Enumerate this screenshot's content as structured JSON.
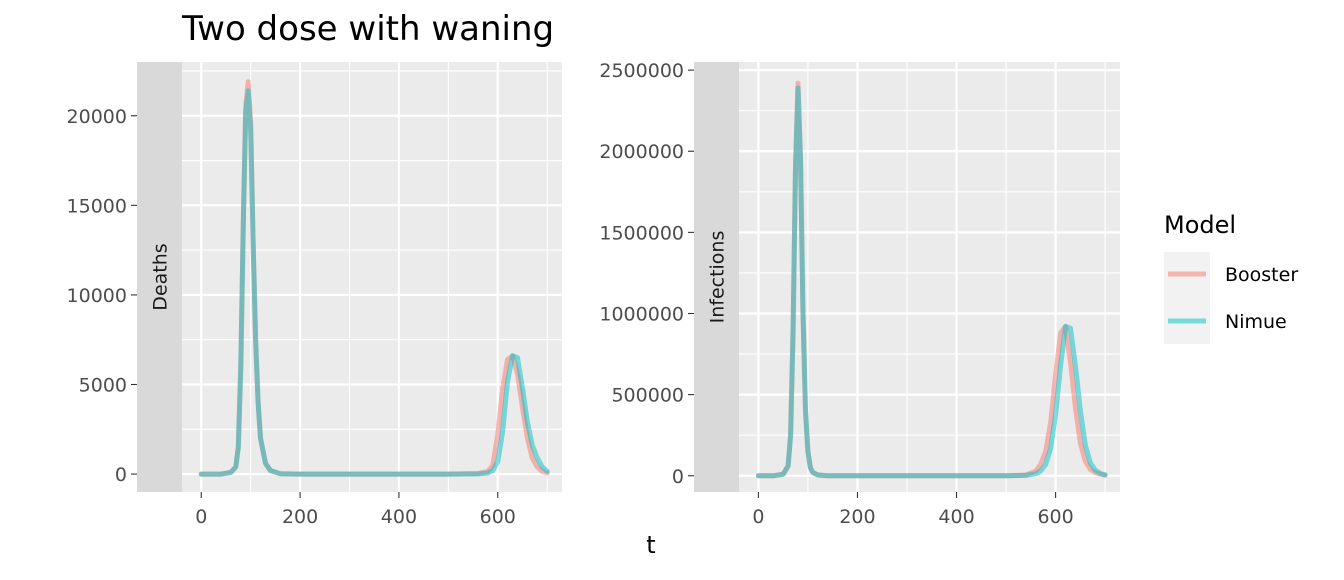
{
  "title": "Two dose with waning",
  "chart_data": {
    "type": "line",
    "xlabel": "t",
    "legend": {
      "title": "Model",
      "position": "right",
      "entries": [
        {
          "name": "Booster",
          "color": "#F8766D",
          "opacity": 0.5
        },
        {
          "name": "Nimue",
          "color": "#00BFC4",
          "opacity": 0.5
        }
      ]
    },
    "panels": [
      {
        "strip_label": "Deaths",
        "xlim": [
          -130,
          730
        ],
        "ylim": [
          -1000,
          23000
        ],
        "x_ticks": [
          0,
          200,
          400,
          600
        ],
        "y_ticks": [
          0,
          5000,
          10000,
          15000,
          20000
        ],
        "y_tick_labels": [
          "0",
          "5000",
          "10000",
          "15000",
          "20000"
        ],
        "series": [
          {
            "name": "Booster",
            "x": [
              0,
              40,
              60,
              70,
              75,
              80,
              85,
              90,
              95,
              100,
              105,
              110,
              115,
              120,
              130,
              140,
              160,
              200,
              300,
              400,
              500,
              560,
              580,
              590,
              600,
              610,
              620,
              630,
              640,
              650,
              660,
              670,
              680,
              690,
              700
            ],
            "y": [
              0,
              0,
              100,
              400,
              1500,
              6000,
              14000,
              20500,
              21900,
              19500,
              13000,
              7500,
              4000,
              2000,
              600,
              200,
              20,
              0,
              0,
              0,
              0,
              30,
              150,
              500,
              2200,
              4800,
              6400,
              6600,
              5600,
              3700,
              2000,
              900,
              400,
              150,
              60
            ]
          },
          {
            "name": "Nimue",
            "x": [
              0,
              40,
              60,
              70,
              75,
              80,
              85,
              90,
              95,
              100,
              105,
              110,
              115,
              120,
              130,
              140,
              160,
              200,
              300,
              400,
              500,
              560,
              580,
              590,
              600,
              610,
              620,
              630,
              640,
              650,
              660,
              670,
              680,
              690,
              700
            ],
            "y": [
              0,
              0,
              100,
              400,
              1500,
              6000,
              14000,
              20200,
              21400,
              19200,
              13000,
              7500,
              4000,
              2000,
              600,
              200,
              20,
              0,
              0,
              0,
              0,
              10,
              60,
              200,
              700,
              2400,
              5200,
              6600,
              6500,
              4800,
              2900,
              1600,
              900,
              400,
              150
            ]
          }
        ]
      },
      {
        "strip_label": "Infections",
        "xlim": [
          -130,
          730
        ],
        "ylim": [
          -100000,
          2550000
        ],
        "x_ticks": [
          0,
          200,
          400,
          600
        ],
        "y_ticks": [
          0,
          500000,
          1000000,
          1500000,
          2000000,
          2500000
        ],
        "y_tick_labels": [
          "0",
          "500000",
          "1000000",
          "1500000",
          "2000000",
          "2500000"
        ],
        "series": [
          {
            "name": "Booster",
            "x": [
              0,
              30,
              50,
              60,
              65,
              70,
              75,
              80,
              85,
              90,
              95,
              100,
              105,
              110,
              120,
              140,
              200,
              300,
              400,
              500,
              540,
              560,
              570,
              580,
              590,
              600,
              610,
              620,
              630,
              640,
              650,
              660,
              670,
              680,
              690,
              700
            ],
            "y": [
              0,
              0,
              10000,
              60000,
              250000,
              900000,
              1900000,
              2420000,
              1950000,
              1000000,
              400000,
              150000,
              50000,
              20000,
              5000,
              0,
              0,
              0,
              0,
              0,
              5000,
              30000,
              70000,
              150000,
              330000,
              620000,
              880000,
              920000,
              700000,
              420000,
              200000,
              90000,
              40000,
              20000,
              10000,
              5000
            ]
          },
          {
            "name": "Nimue",
            "x": [
              0,
              30,
              50,
              60,
              65,
              70,
              75,
              80,
              85,
              90,
              95,
              100,
              105,
              110,
              120,
              140,
              200,
              300,
              400,
              500,
              540,
              560,
              570,
              580,
              590,
              600,
              610,
              620,
              630,
              640,
              650,
              660,
              670,
              680,
              690,
              700
            ],
            "y": [
              0,
              0,
              10000,
              60000,
              250000,
              900000,
              1900000,
              2390000,
              1950000,
              1000000,
              400000,
              150000,
              50000,
              20000,
              5000,
              0,
              0,
              0,
              0,
              0,
              2000,
              12000,
              30000,
              70000,
              170000,
              380000,
              680000,
              920000,
              910000,
              680000,
              400000,
              190000,
              80000,
              35000,
              15000,
              5000
            ]
          }
        ]
      }
    ]
  }
}
